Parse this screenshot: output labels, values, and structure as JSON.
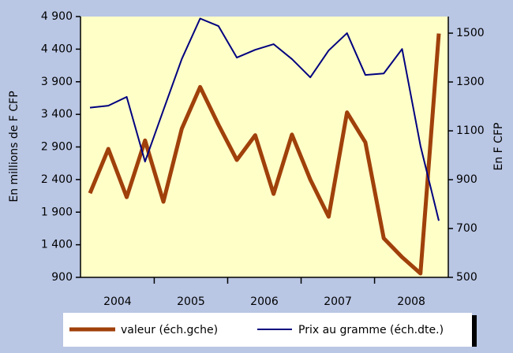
{
  "chart_data": {
    "type": "line",
    "categories": [
      null,
      null,
      null,
      null,
      null,
      null,
      null,
      null,
      null,
      null,
      null,
      null,
      null,
      null,
      null,
      null,
      null,
      null,
      null,
      null
    ],
    "year_labels": [
      "2004",
      "2005",
      "2006",
      "2007",
      "2008"
    ],
    "ylabel": "En millions de F CFP",
    "y2label": "En F CFP",
    "ylim": [
      900,
      4900
    ],
    "yticks": [
      900,
      {
        "value": 1400,
        "label": "1 400"
      },
      {
        "value": 1900,
        "label": "1 900"
      },
      {
        "value": 2400,
        "label": "2 400"
      },
      {
        "value": 2900,
        "label": "2 900"
      },
      {
        "value": 3400,
        "label": "3 400"
      },
      {
        "value": 3900,
        "label": "3 900"
      },
      {
        "value": 4400,
        "label": "4 400"
      },
      {
        "value": 4900,
        "label": "4 900"
      }
    ],
    "y2lim": [
      500,
      1568
    ],
    "y2ticks": [
      500,
      700,
      900,
      1100,
      1300,
      1500
    ],
    "series": [
      {
        "name": "valeur (éch.gche)",
        "color": "#a0400a",
        "values": [
          2190,
          2870,
          2130,
          3000,
          2060,
          3180,
          3820,
          3240,
          2700,
          3080,
          2180,
          3090,
          2400,
          1830,
          3430,
          2970,
          1500,
          1210,
          960,
          4640
        ]
      },
      {
        "name": "Prix au gramme (éch.dte.)",
        "color": "#000080",
        "axis": "y2",
        "values": [
          1195,
          1203,
          1239,
          974,
          1185,
          1394,
          1560,
          1529,
          1400,
          1432,
          1455,
          1394,
          1319,
          1429,
          1500,
          1329,
          1335,
          1435,
          1039,
          732
        ]
      }
    ]
  }
}
